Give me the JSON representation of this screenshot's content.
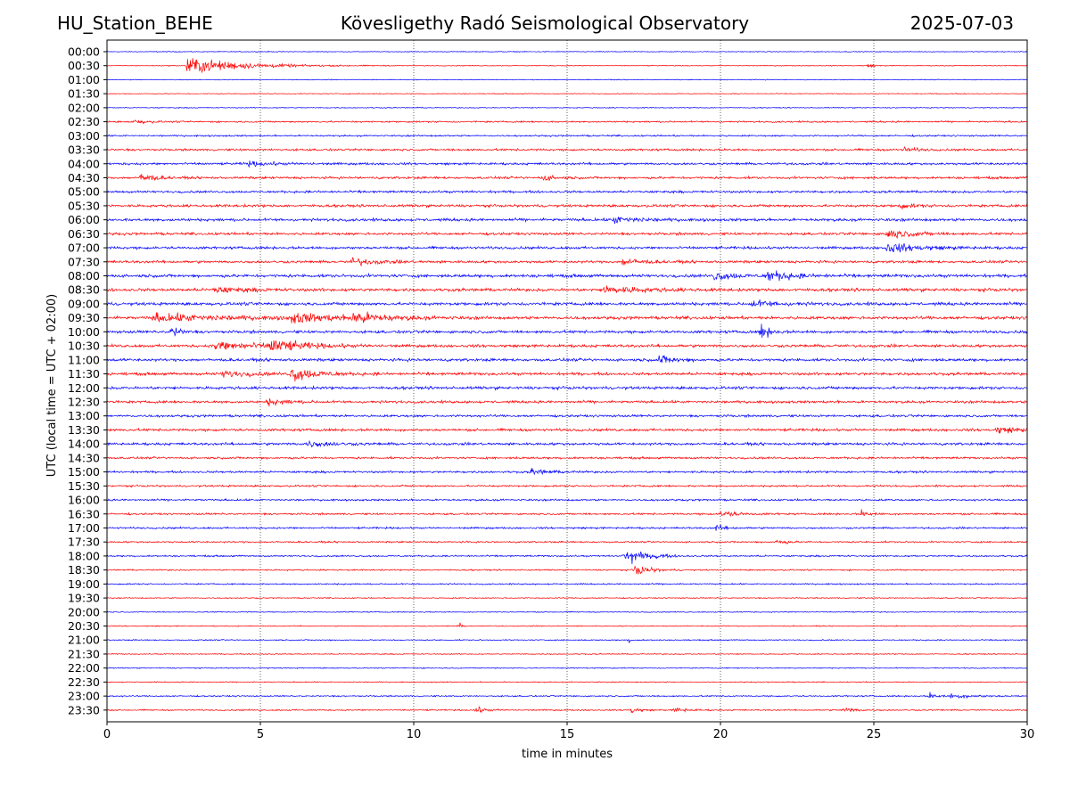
{
  "header": {
    "station": "HU_Station_BEHE",
    "observatory": "Kövesligethy Radó Seismological Observatory",
    "date": "2025-07-03"
  },
  "chart_data": {
    "type": "line",
    "title": "Kövesligethy Radó Seismological Observatory",
    "xlabel": "time in minutes",
    "ylabel": "UTC (local time = UTC + 02:00)",
    "xlim": [
      0,
      30
    ],
    "xticks": [
      0,
      5,
      10,
      15,
      20,
      25,
      30
    ],
    "grid": "vertical dotted lines at x ticks",
    "colors": [
      "#0000ff",
      "#ff0000"
    ],
    "rows": [
      {
        "label": "00:00",
        "color": "#0000ff",
        "noise": 0.35,
        "events": []
      },
      {
        "label": "00:30",
        "color": "#ff0000",
        "noise": 0.35,
        "events": [
          {
            "x": 2.6,
            "amp": 8,
            "dur": 2.2
          },
          {
            "x": 24.8,
            "amp": 2.5,
            "dur": 0.2
          }
        ]
      },
      {
        "label": "01:00",
        "color": "#0000ff",
        "noise": 0.35,
        "events": []
      },
      {
        "label": "01:30",
        "color": "#ff0000",
        "noise": 0.35,
        "events": []
      },
      {
        "label": "02:00",
        "color": "#0000ff",
        "noise": 0.4,
        "events": []
      },
      {
        "label": "02:30",
        "color": "#ff0000",
        "noise": 0.7,
        "events": [
          {
            "x": 0.9,
            "amp": 2,
            "dur": 0.5
          }
        ]
      },
      {
        "label": "03:00",
        "color": "#0000ff",
        "noise": 0.7,
        "events": []
      },
      {
        "label": "03:30",
        "color": "#ff0000",
        "noise": 0.9,
        "events": [
          {
            "x": 26.0,
            "amp": 2,
            "dur": 0.5
          }
        ]
      },
      {
        "label": "04:00",
        "color": "#0000ff",
        "noise": 1.0,
        "events": [
          {
            "x": 4.5,
            "amp": 2,
            "dur": 1.0
          }
        ]
      },
      {
        "label": "04:30",
        "color": "#ff0000",
        "noise": 1.0,
        "events": [
          {
            "x": 1.1,
            "amp": 5,
            "dur": 0.5
          },
          {
            "x": 14.2,
            "amp": 2.5,
            "dur": 0.5
          }
        ]
      },
      {
        "label": "05:00",
        "color": "#0000ff",
        "noise": 1.0,
        "events": []
      },
      {
        "label": "05:30",
        "color": "#ff0000",
        "noise": 1.1,
        "events": [
          {
            "x": 25.8,
            "amp": 2.5,
            "dur": 0.6
          }
        ]
      },
      {
        "label": "06:00",
        "color": "#0000ff",
        "noise": 1.2,
        "events": [
          {
            "x": 16.5,
            "amp": 3,
            "dur": 1.0
          }
        ]
      },
      {
        "label": "06:30",
        "color": "#ff0000",
        "noise": 1.1,
        "events": [
          {
            "x": 25.4,
            "amp": 4,
            "dur": 1.0
          }
        ]
      },
      {
        "label": "07:00",
        "color": "#0000ff",
        "noise": 1.1,
        "events": [
          {
            "x": 25.4,
            "amp": 4,
            "dur": 1.5
          }
        ]
      },
      {
        "label": "07:30",
        "color": "#ff0000",
        "noise": 1.1,
        "events": [
          {
            "x": 8.0,
            "amp": 3,
            "dur": 1.0
          },
          {
            "x": 16.8,
            "amp": 3,
            "dur": 0.8
          }
        ]
      },
      {
        "label": "08:00",
        "color": "#0000ff",
        "noise": 1.3,
        "events": [
          {
            "x": 19.8,
            "amp": 4,
            "dur": 0.8
          },
          {
            "x": 21.5,
            "amp": 5,
            "dur": 1.0
          }
        ]
      },
      {
        "label": "08:30",
        "color": "#ff0000",
        "noise": 1.3,
        "events": [
          {
            "x": 3.5,
            "amp": 3,
            "dur": 1.0
          },
          {
            "x": 16.2,
            "amp": 3.5,
            "dur": 1.5
          }
        ]
      },
      {
        "label": "09:00",
        "color": "#0000ff",
        "noise": 1.3,
        "events": [
          {
            "x": 21.0,
            "amp": 3,
            "dur": 1.0
          }
        ]
      },
      {
        "label": "09:30",
        "color": "#ff0000",
        "noise": 1.3,
        "events": [
          {
            "x": 1.5,
            "amp": 3.5,
            "dur": 3.0
          },
          {
            "x": 6.0,
            "amp": 4,
            "dur": 2.0
          },
          {
            "x": 8.0,
            "amp": 5,
            "dur": 1.2
          }
        ]
      },
      {
        "label": "10:00",
        "color": "#0000ff",
        "noise": 1.2,
        "events": [
          {
            "x": 2.1,
            "amp": 6,
            "dur": 0.3
          },
          {
            "x": 21.3,
            "amp": 9,
            "dur": 0.3
          }
        ]
      },
      {
        "label": "10:30",
        "color": "#ff0000",
        "noise": 1.2,
        "events": [
          {
            "x": 3.5,
            "amp": 4,
            "dur": 2.0
          },
          {
            "x": 5.3,
            "amp": 6,
            "dur": 1.2
          }
        ]
      },
      {
        "label": "11:00",
        "color": "#0000ff",
        "noise": 1.2,
        "events": [
          {
            "x": 18.0,
            "amp": 4,
            "dur": 0.6
          }
        ]
      },
      {
        "label": "11:30",
        "color": "#ff0000",
        "noise": 1.2,
        "events": [
          {
            "x": 3.8,
            "amp": 3,
            "dur": 1.0
          },
          {
            "x": 6.0,
            "amp": 7,
            "dur": 1.0
          }
        ]
      },
      {
        "label": "12:00",
        "color": "#0000ff",
        "noise": 1.2,
        "events": []
      },
      {
        "label": "12:30",
        "color": "#ff0000",
        "noise": 1.1,
        "events": [
          {
            "x": 5.2,
            "amp": 3,
            "dur": 0.8
          }
        ]
      },
      {
        "label": "13:00",
        "color": "#0000ff",
        "noise": 1.0,
        "events": []
      },
      {
        "label": "13:30",
        "color": "#ff0000",
        "noise": 1.1,
        "events": [
          {
            "x": 29.0,
            "amp": 3,
            "dur": 1.0
          }
        ]
      },
      {
        "label": "14:00",
        "color": "#0000ff",
        "noise": 1.1,
        "events": [
          {
            "x": 6.5,
            "amp": 2.5,
            "dur": 1.0
          }
        ]
      },
      {
        "label": "14:30",
        "color": "#ff0000",
        "noise": 0.9,
        "events": []
      },
      {
        "label": "15:00",
        "color": "#0000ff",
        "noise": 0.9,
        "events": [
          {
            "x": 13.8,
            "amp": 2.5,
            "dur": 0.8
          }
        ]
      },
      {
        "label": "15:30",
        "color": "#ff0000",
        "noise": 0.8,
        "events": []
      },
      {
        "label": "16:00",
        "color": "#0000ff",
        "noise": 0.8,
        "events": []
      },
      {
        "label": "16:30",
        "color": "#ff0000",
        "noise": 0.8,
        "events": [
          {
            "x": 20.0,
            "amp": 2.5,
            "dur": 0.8
          },
          {
            "x": 24.6,
            "amp": 3,
            "dur": 0.3
          }
        ]
      },
      {
        "label": "17:00",
        "color": "#0000ff",
        "noise": 0.8,
        "events": [
          {
            "x": 19.8,
            "amp": 3,
            "dur": 0.4
          }
        ]
      },
      {
        "label": "17:30",
        "color": "#ff0000",
        "noise": 0.7,
        "events": [
          {
            "x": 21.8,
            "amp": 2.5,
            "dur": 0.4
          }
        ]
      },
      {
        "label": "18:00",
        "color": "#0000ff",
        "noise": 0.7,
        "events": [
          {
            "x": 16.8,
            "amp": 3,
            "dur": 0.8
          },
          {
            "x": 17.1,
            "amp": 5,
            "dur": 0.4
          },
          {
            "x": 17.8,
            "amp": 3,
            "dur": 0.4
          }
        ]
      },
      {
        "label": "18:30",
        "color": "#ff0000",
        "noise": 0.6,
        "events": [
          {
            "x": 17.2,
            "amp": 5,
            "dur": 0.6
          }
        ]
      },
      {
        "label": "19:00",
        "color": "#0000ff",
        "noise": 0.6,
        "events": []
      },
      {
        "label": "19:30",
        "color": "#ff0000",
        "noise": 0.45,
        "events": []
      },
      {
        "label": "20:00",
        "color": "#0000ff",
        "noise": 0.4,
        "events": []
      },
      {
        "label": "20:30",
        "color": "#ff0000",
        "noise": 0.45,
        "events": [
          {
            "x": 11.5,
            "amp": 2.5,
            "dur": 0.1
          }
        ]
      },
      {
        "label": "21:00",
        "color": "#0000ff",
        "noise": 0.5,
        "events": [
          {
            "x": 17.0,
            "amp": 2,
            "dur": 0.2
          }
        ]
      },
      {
        "label": "21:30",
        "color": "#ff0000",
        "noise": 0.45,
        "events": []
      },
      {
        "label": "22:00",
        "color": "#0000ff",
        "noise": 0.45,
        "events": []
      },
      {
        "label": "22:30",
        "color": "#ff0000",
        "noise": 0.45,
        "events": []
      },
      {
        "label": "23:00",
        "color": "#0000ff",
        "noise": 0.6,
        "events": [
          {
            "x": 26.8,
            "amp": 3,
            "dur": 0.3
          },
          {
            "x": 27.5,
            "amp": 2,
            "dur": 1.0
          }
        ]
      },
      {
        "label": "23:30",
        "color": "#ff0000",
        "noise": 0.6,
        "events": [
          {
            "x": 12.0,
            "amp": 3,
            "dur": 0.4
          },
          {
            "x": 17.1,
            "amp": 3.5,
            "dur": 0.3
          },
          {
            "x": 18.5,
            "amp": 2.5,
            "dur": 0.5
          },
          {
            "x": 24.0,
            "amp": 2.5,
            "dur": 0.5
          }
        ]
      }
    ]
  }
}
